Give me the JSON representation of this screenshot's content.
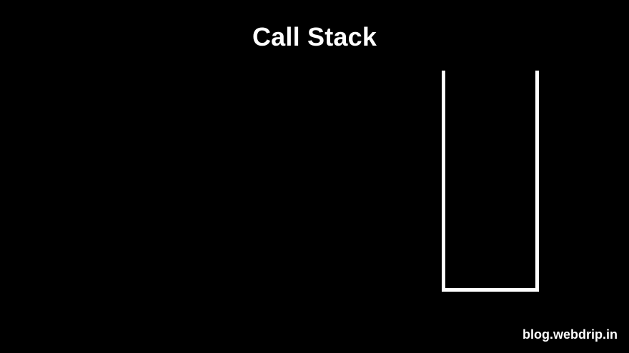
{
  "title": "Call Stack",
  "watermark": "blog.webdrip.in",
  "colors": {
    "background": "#000000",
    "foreground": "#ffffff"
  }
}
